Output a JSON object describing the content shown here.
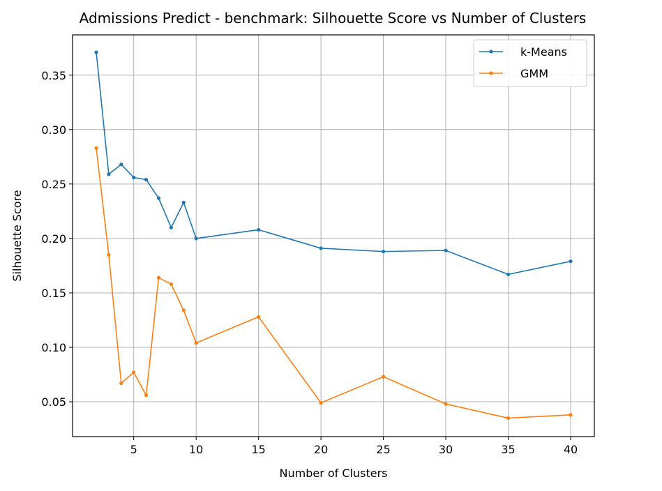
{
  "chart_data": {
    "type": "line",
    "title": "Admissions Predict - benchmark: Silhouette Score vs Number of Clusters",
    "xlabel": "Number of Clusters",
    "ylabel": "Silhouette Score",
    "xlim": [
      0.1,
      41.9
    ],
    "ylim": [
      0.018,
      0.387
    ],
    "xticks": [
      5,
      10,
      15,
      20,
      25,
      30,
      35,
      40
    ],
    "xtick_labels": [
      "5",
      "10",
      "15",
      "20",
      "25",
      "30",
      "35",
      "40"
    ],
    "yticks": [
      0.05,
      0.1,
      0.15,
      0.2,
      0.25,
      0.3,
      0.35
    ],
    "ytick_labels": [
      "0.05",
      "0.10",
      "0.15",
      "0.20",
      "0.25",
      "0.30",
      "0.35"
    ],
    "grid": true,
    "legend_position": "top-right",
    "x": [
      2,
      3,
      4,
      5,
      6,
      7,
      8,
      9,
      10,
      15,
      20,
      25,
      30,
      35,
      40
    ],
    "series": [
      {
        "name": "k-Means",
        "color": "#1f77b4",
        "values": [
          0.371,
          0.259,
          0.268,
          0.256,
          0.254,
          0.237,
          0.21,
          0.233,
          0.2,
          0.208,
          0.191,
          0.188,
          0.189,
          0.167,
          0.179
        ]
      },
      {
        "name": "GMM",
        "color": "#ff7f0e",
        "values": [
          0.283,
          0.185,
          0.067,
          0.077,
          0.056,
          0.164,
          0.158,
          0.134,
          0.104,
          0.128,
          0.049,
          0.073,
          0.048,
          0.035,
          0.038
        ]
      }
    ]
  }
}
